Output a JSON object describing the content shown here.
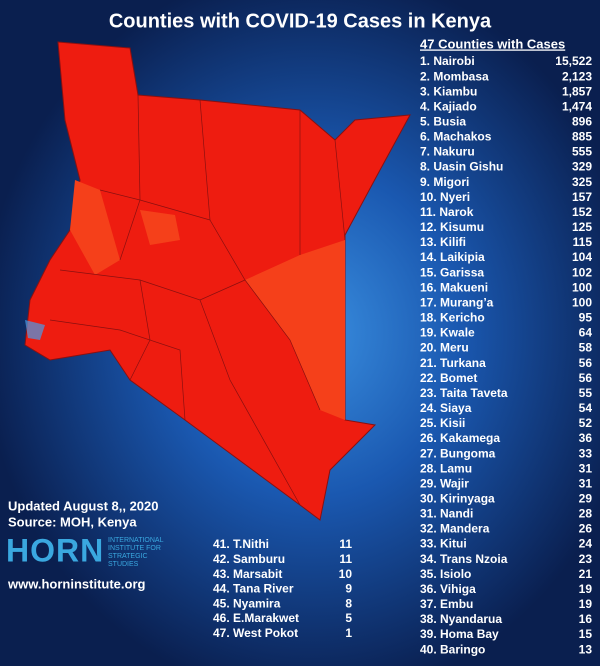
{
  "title": "Counties with COVID-19 Cases in Kenya",
  "list_heading": "47 Counties with Cases",
  "counties": [
    {
      "label": "1. Nairobi",
      "cases": "15,522"
    },
    {
      "label": "2. Mombasa",
      "cases": "2,123"
    },
    {
      "label": "3. Kiambu",
      "cases": "1,857"
    },
    {
      "label": "4. Kajiado",
      "cases": "1,474"
    },
    {
      "label": "5. Busia",
      "cases": "896"
    },
    {
      "label": "6. Machakos",
      "cases": "885"
    },
    {
      "label": "7. Nakuru",
      "cases": "555"
    },
    {
      "label": "8. Uasin Gishu",
      "cases": "329"
    },
    {
      "label": "9. Migori",
      "cases": "325"
    },
    {
      "label": "10. Nyeri",
      "cases": "157"
    },
    {
      "label": "11. Narok",
      "cases": "152"
    },
    {
      "label": "12. Kisumu",
      "cases": "125"
    },
    {
      "label": "13. Kilifi",
      "cases": "115"
    },
    {
      "label": "14. Laikipia",
      "cases": "104"
    },
    {
      "label": "15. Garissa",
      "cases": "102"
    },
    {
      "label": "16. Makueni",
      "cases": "100"
    },
    {
      "label": "17. Murang’a",
      "cases": "100"
    },
    {
      "label": "18. Kericho",
      "cases": "95"
    },
    {
      "label": "19. Kwale",
      "cases": "64"
    },
    {
      "label": "20. Meru",
      "cases": "58"
    },
    {
      "label": "21. Turkana",
      "cases": "56"
    },
    {
      "label": "22. Bomet",
      "cases": "56"
    },
    {
      "label": "23. Taita Taveta",
      "cases": "55"
    },
    {
      "label": "24. Siaya",
      "cases": "54"
    },
    {
      "label": "25. Kisii",
      "cases": "52"
    },
    {
      "label": "26. Kakamega",
      "cases": "36"
    },
    {
      "label": "27. Bungoma",
      "cases": "33"
    },
    {
      "label": "28. Lamu",
      "cases": "31"
    },
    {
      "label": "29. Wajir",
      "cases": "31"
    },
    {
      "label": "30. Kirinyaga",
      "cases": "29"
    },
    {
      "label": "31. Nandi",
      "cases": "28"
    },
    {
      "label": "32. Mandera",
      "cases": "26"
    },
    {
      "label": "33. Kitui",
      "cases": "24"
    },
    {
      "label": "34. Trans Nzoia",
      "cases": "23"
    },
    {
      "label": "35. Isiolo",
      "cases": "21"
    },
    {
      "label": "36. Vihiga",
      "cases": "19"
    },
    {
      "label": "37. Embu",
      "cases": "19"
    },
    {
      "label": "38. Nyandarua",
      "cases": "16"
    },
    {
      "label": "39. Homa Bay",
      "cases": "15"
    },
    {
      "label": "40. Baringo",
      "cases": "13"
    },
    {
      "label": "41. T.Nithi",
      "cases": "11"
    },
    {
      "label": "42. Samburu",
      "cases": "11"
    },
    {
      "label": "43. Marsabit",
      "cases": "10"
    },
    {
      "label": "44. Tana River",
      "cases": "9"
    },
    {
      "label": "45. Nyamira",
      "cases": "8"
    },
    {
      "label": "46. E.Marakwet",
      "cases": "5"
    },
    {
      "label": "47. West Pokot",
      "cases": "1"
    }
  ],
  "updated": "Updated August 8,, 2020",
  "source": "Source: MOH, Kenya",
  "logo": {
    "name": "HORN",
    "tagline": [
      "INTERNATIONAL",
      "INSTITUTE FOR",
      "STRATEGIC",
      "STUDIES"
    ]
  },
  "website": "www.horninstitute.org"
}
